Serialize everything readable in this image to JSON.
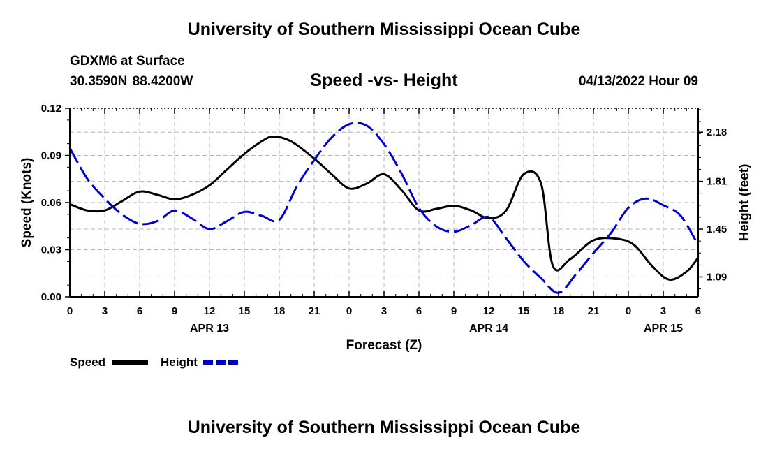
{
  "header": {
    "title": "University of Southern Mississippi Ocean Cube",
    "station": "GDXM6 at Surface",
    "coordinates": "30.3590N  88.4200W",
    "subtitle": "Speed -vs- Height",
    "datetime": "04/13/2022 Hour 09"
  },
  "footer": {
    "title": "University of Southern Mississippi Ocean Cube"
  },
  "colors": {
    "speed": "#000000",
    "height": "#0000cc",
    "grid": "#b4b4b4"
  },
  "chart_data": {
    "type": "line",
    "xlabel": "Forecast (Z)",
    "x_unit": "hours since 04/13 00Z",
    "xlim": [
      0,
      54
    ],
    "x_ticks": [
      0,
      3,
      6,
      9,
      12,
      15,
      18,
      21,
      24,
      27,
      30,
      33,
      36,
      39,
      42,
      45,
      48,
      51,
      54
    ],
    "x_tick_labels": [
      "0",
      "3",
      "6",
      "9",
      "12",
      "15",
      "18",
      "21",
      "0",
      "3",
      "6",
      "9",
      "12",
      "15",
      "18",
      "21",
      "0",
      "3",
      "6"
    ],
    "day_labels": [
      {
        "hour": 12,
        "label": "APR 13"
      },
      {
        "hour": 36,
        "label": "APR 14"
      },
      {
        "hour": 51,
        "label": "APR 15"
      }
    ],
    "y_left": {
      "label": "Speed (Knots)",
      "lim": [
        0,
        0.12
      ],
      "ticks": [
        0,
        0.03,
        0.06,
        0.09,
        0.12
      ],
      "tick_labels": [
        "0.00",
        "0.03",
        "0.06",
        "0.09",
        "0.12"
      ]
    },
    "y_right": {
      "label": "Height (feet)",
      "lim": [
        0.94,
        2.36
      ],
      "ticks": [
        1.09,
        1.45,
        1.81,
        2.18
      ],
      "tick_labels": [
        "1.09",
        "1.45",
        "1.81",
        "2.18"
      ]
    },
    "grid": true,
    "series": [
      {
        "name": "Speed",
        "axis": "left",
        "style": "solid",
        "x": [
          0,
          1.5,
          3,
          4.5,
          6,
          7.5,
          9,
          10.5,
          12,
          13.5,
          15,
          16.5,
          17.5,
          19,
          21,
          22.5,
          24,
          25.5,
          27,
          28.5,
          30,
          31.5,
          33,
          34.5,
          36,
          37.5,
          39,
          40.5,
          41.5,
          43,
          45,
          47,
          48.5,
          50,
          51.5,
          53,
          54
        ],
        "values": [
          0.059,
          0.055,
          0.055,
          0.061,
          0.067,
          0.065,
          0.062,
          0.065,
          0.071,
          0.081,
          0.091,
          0.099,
          0.102,
          0.099,
          0.088,
          0.078,
          0.069,
          0.072,
          0.078,
          0.068,
          0.055,
          0.056,
          0.058,
          0.055,
          0.05,
          0.055,
          0.078,
          0.072,
          0.02,
          0.024,
          0.036,
          0.037,
          0.033,
          0.02,
          0.011,
          0.016,
          0.025
        ]
      },
      {
        "name": "Height",
        "axis": "right",
        "style": "dashed",
        "x": [
          0,
          1.5,
          3,
          4.5,
          6,
          7.5,
          9,
          10.5,
          12,
          13.5,
          15,
          16.5,
          18,
          19.5,
          21,
          22.5,
          24,
          25.5,
          27,
          28.5,
          30,
          31.5,
          33,
          34.5,
          36,
          37.5,
          39,
          40.5,
          42,
          43.5,
          45,
          46.5,
          48,
          49.5,
          51,
          52.5,
          54
        ],
        "values": [
          2.06,
          1.83,
          1.68,
          1.56,
          1.49,
          1.51,
          1.59,
          1.53,
          1.45,
          1.51,
          1.58,
          1.55,
          1.52,
          1.77,
          1.97,
          2.14,
          2.24,
          2.23,
          2.09,
          1.87,
          1.61,
          1.47,
          1.43,
          1.48,
          1.54,
          1.38,
          1.21,
          1.08,
          0.97,
          1.11,
          1.27,
          1.42,
          1.61,
          1.68,
          1.63,
          1.55,
          1.33
        ]
      }
    ]
  },
  "legend": {
    "speed_label": "Speed",
    "height_label": "Height"
  }
}
